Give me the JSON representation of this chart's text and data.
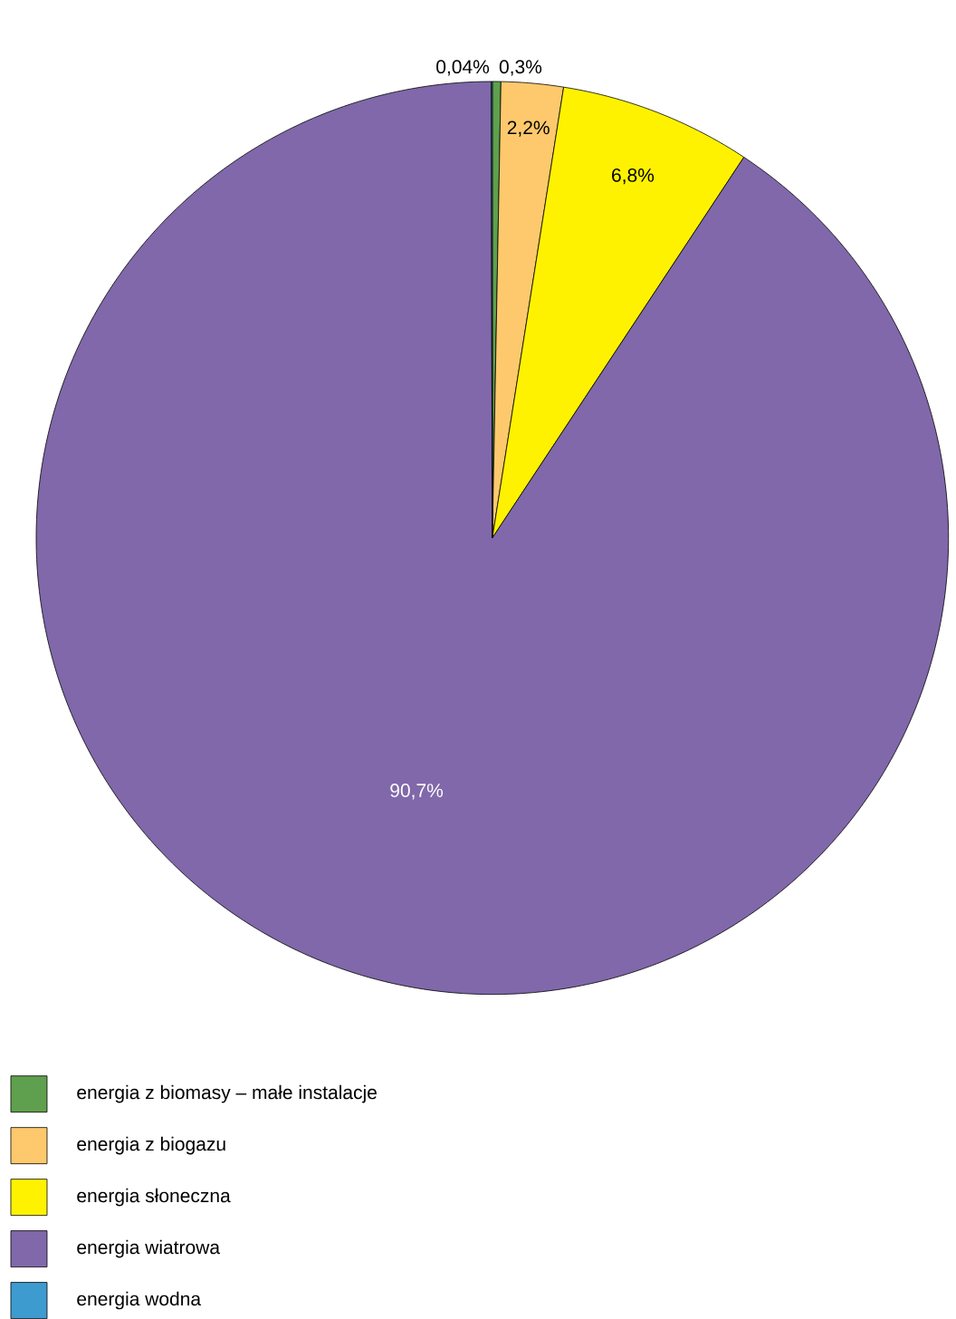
{
  "chart_data": {
    "type": "pie",
    "categories": [
      "energia z biomasy – małe instalacje",
      "energia z biogazu",
      "energia słoneczna",
      "energia wiatrowa",
      "energia wodna"
    ],
    "values": [
      0.3,
      2.2,
      6.8,
      90.7,
      0.04
    ],
    "value_labels": [
      "0,3%",
      "2,2%",
      "6,8%",
      "90,7%",
      "0,04%"
    ],
    "colors": [
      "#5fa04e",
      "#fdc96c",
      "#fff200",
      "#8068aa",
      "#3e9bd0"
    ],
    "legend": "bottom left"
  }
}
